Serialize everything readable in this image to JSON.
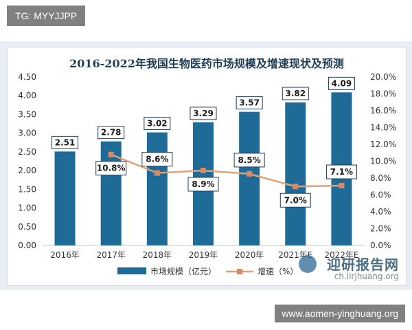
{
  "badge": {
    "text": "TG: MYYJJPP"
  },
  "footer": {
    "url": "www.aomen-yinghuang.org"
  },
  "watermark": {
    "logo": "迎研报告网",
    "sub": "ch.lirjhuang.org"
  },
  "colors": {
    "bar": "#1f6b97",
    "line": "#e0a07a",
    "marker": "#d98a63",
    "label_border": "#1f3d55"
  },
  "chart_data": {
    "type": "bar",
    "title": "2016-2022年我国生物医药市场规模及增速现状及预测",
    "categories": [
      "2016年",
      "2017年",
      "2018年",
      "2019年",
      "2020年",
      "2021年E",
      "2022年E"
    ],
    "series": [
      {
        "name": "市场规模（亿元）",
        "type": "bar",
        "axis": "left",
        "values": [
          2.51,
          2.78,
          3.02,
          3.29,
          3.57,
          3.82,
          4.09
        ],
        "labels": [
          "2.51",
          "2.78",
          "3.02",
          "3.29",
          "3.57",
          "3.82",
          "4.09"
        ]
      },
      {
        "name": "增速（%）",
        "type": "line",
        "axis": "right",
        "values": [
          null,
          10.8,
          8.6,
          8.9,
          8.5,
          7.0,
          7.1
        ],
        "labels": [
          "",
          "10.8%",
          "8.6%",
          "8.9%",
          "8.5%",
          "7.0%",
          "7.1%"
        ]
      }
    ],
    "ylim_left": [
      0,
      4.5
    ],
    "ylim_right": [
      0,
      20
    ],
    "yticks_left": [
      "0.00",
      "0.50",
      "1.00",
      "1.50",
      "2.00",
      "2.50",
      "3.00",
      "3.50",
      "4.00",
      "4.50"
    ],
    "yticks_right": [
      "0.0%",
      "2.0%",
      "4.0%",
      "6.0%",
      "8.0%",
      "10.0%",
      "12.0%",
      "14.0%",
      "16.0%",
      "18.0%",
      "20.0%"
    ],
    "legend_position": "bottom",
    "grid": false
  }
}
